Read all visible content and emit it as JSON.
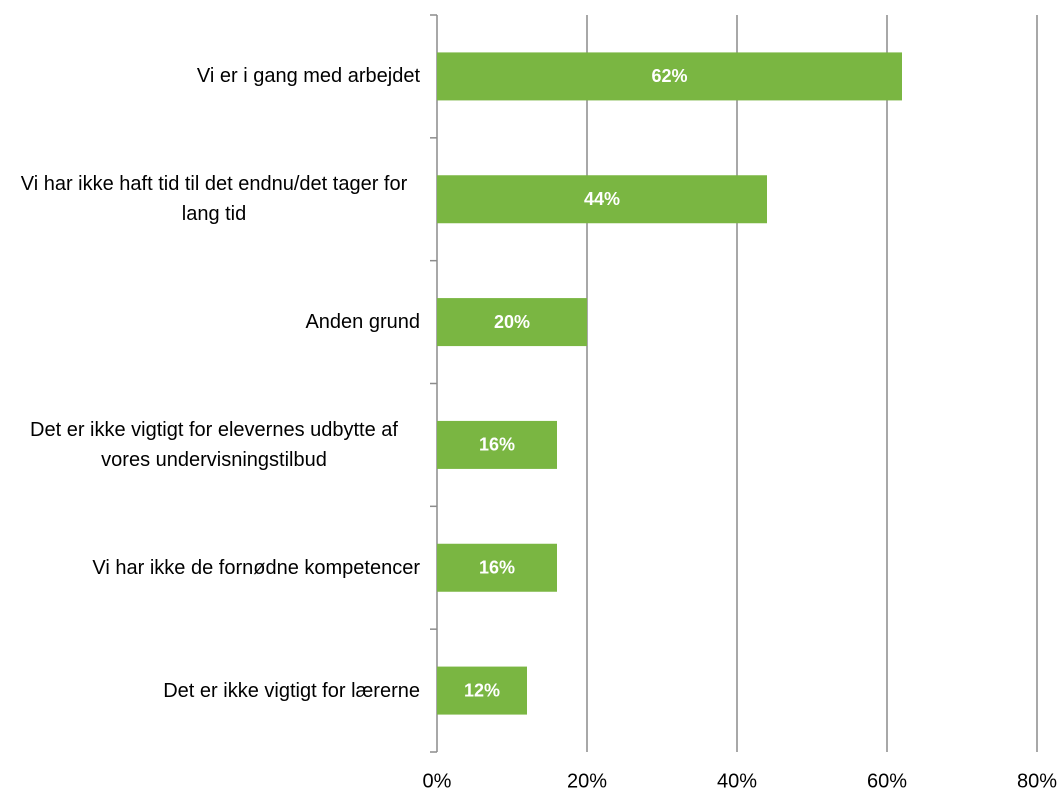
{
  "chart_data": {
    "type": "bar",
    "orientation": "horizontal",
    "categories": [
      "Vi er i gang med arbejdet",
      "Vi har ikke haft tid til det endnu/det tager for lang tid",
      "Anden grund",
      "Det er ikke vigtigt for elevernes udbytte af vores undervisningstilbud",
      "Vi har ikke de fornødne kompetencer",
      "Det er ikke vigtigt for lærerne"
    ],
    "values": [
      62,
      44,
      20,
      16,
      16,
      12
    ],
    "value_labels": [
      "62%",
      "44%",
      "20%",
      "16%",
      "16%",
      "12%"
    ],
    "color": "#7ab642",
    "xlim": [
      0,
      80
    ],
    "xticks": [
      {
        "value": 0,
        "label": "0%"
      },
      {
        "value": 20,
        "label": "20%"
      },
      {
        "value": 40,
        "label": "40%"
      },
      {
        "value": 60,
        "label": "60%"
      },
      {
        "value": 80,
        "label": "80%"
      }
    ],
    "grid": true
  }
}
